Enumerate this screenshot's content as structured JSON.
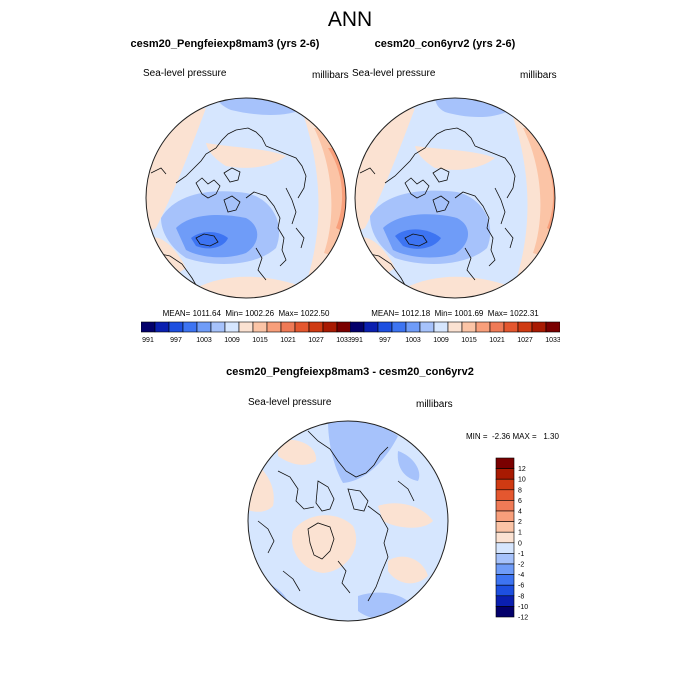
{
  "figure_title": "ANN",
  "chart_data": [
    {
      "type": "heatmap",
      "projection": "north-polar-stereographic",
      "title": "cesm20_Pengfeiexp8mam3 (yrs 2-6)",
      "left_label": "Sea-level pressure",
      "right_label": "millibars",
      "stats": "MEAN= 1011.64  Min= 1002.26  Max= 1022.50",
      "mean": 1011.64,
      "min": 1002.26,
      "max": 1022.5,
      "colorbar": {
        "orientation": "horizontal",
        "levels": [
          991,
          994,
          997,
          1000,
          1003,
          1006,
          1009,
          1012,
          1015,
          1018,
          1021,
          1024,
          1027,
          1030,
          1033
        ],
        "tick_labels": [
          "991",
          "997",
          "1003",
          "1009",
          "1015",
          "1021",
          "1027",
          "1033"
        ]
      }
    },
    {
      "type": "heatmap",
      "projection": "north-polar-stereographic",
      "title": "cesm20_con6yrv2 (yrs 2-6)",
      "left_label": "Sea-level pressure",
      "right_label": "millibars",
      "stats": "MEAN= 1012.18  Min= 1001.69  Max= 1022.31",
      "mean": 1012.18,
      "min": 1001.69,
      "max": 1022.31,
      "colorbar": {
        "orientation": "horizontal",
        "levels": [
          991,
          994,
          997,
          1000,
          1003,
          1006,
          1009,
          1012,
          1015,
          1018,
          1021,
          1024,
          1027,
          1030,
          1033
        ],
        "tick_labels": [
          "991",
          "997",
          "1003",
          "1009",
          "1015",
          "1021",
          "1027",
          "1033"
        ]
      }
    },
    {
      "type": "heatmap",
      "projection": "north-polar-stereographic",
      "title": "cesm20_Pengfeiexp8mam3 - cesm20_con6yrv2",
      "left_label": "Sea-level pressure",
      "right_label": "millibars",
      "stats": "MIN =  -2.36 MAX =   1.30",
      "min": -2.36,
      "max": 1.3,
      "colorbar": {
        "orientation": "vertical",
        "levels": [
          12,
          10,
          8,
          6,
          4,
          2,
          1,
          0,
          -1,
          -2,
          -4,
          -6,
          -8,
          -10,
          -12
        ],
        "tick_labels": [
          "12",
          "10",
          "8",
          "6",
          "4",
          "2",
          "1",
          "0",
          "-1",
          "-2",
          "-4",
          "-6",
          "-8",
          "-10",
          "-12"
        ]
      }
    }
  ],
  "colors": {
    "scale": [
      "#03006b",
      "#0a1fb0",
      "#1d4fe0",
      "#3d74f2",
      "#6f9cf8",
      "#a6c2fb",
      "#d6e6fe",
      "#fbe2d2",
      "#fbc4a6",
      "#f89f7b",
      "#ef7a56",
      "#e4572f",
      "#cf3a12",
      "#a81a02",
      "#7a0000"
    ],
    "coast": "#111111",
    "frame": "#222222"
  }
}
